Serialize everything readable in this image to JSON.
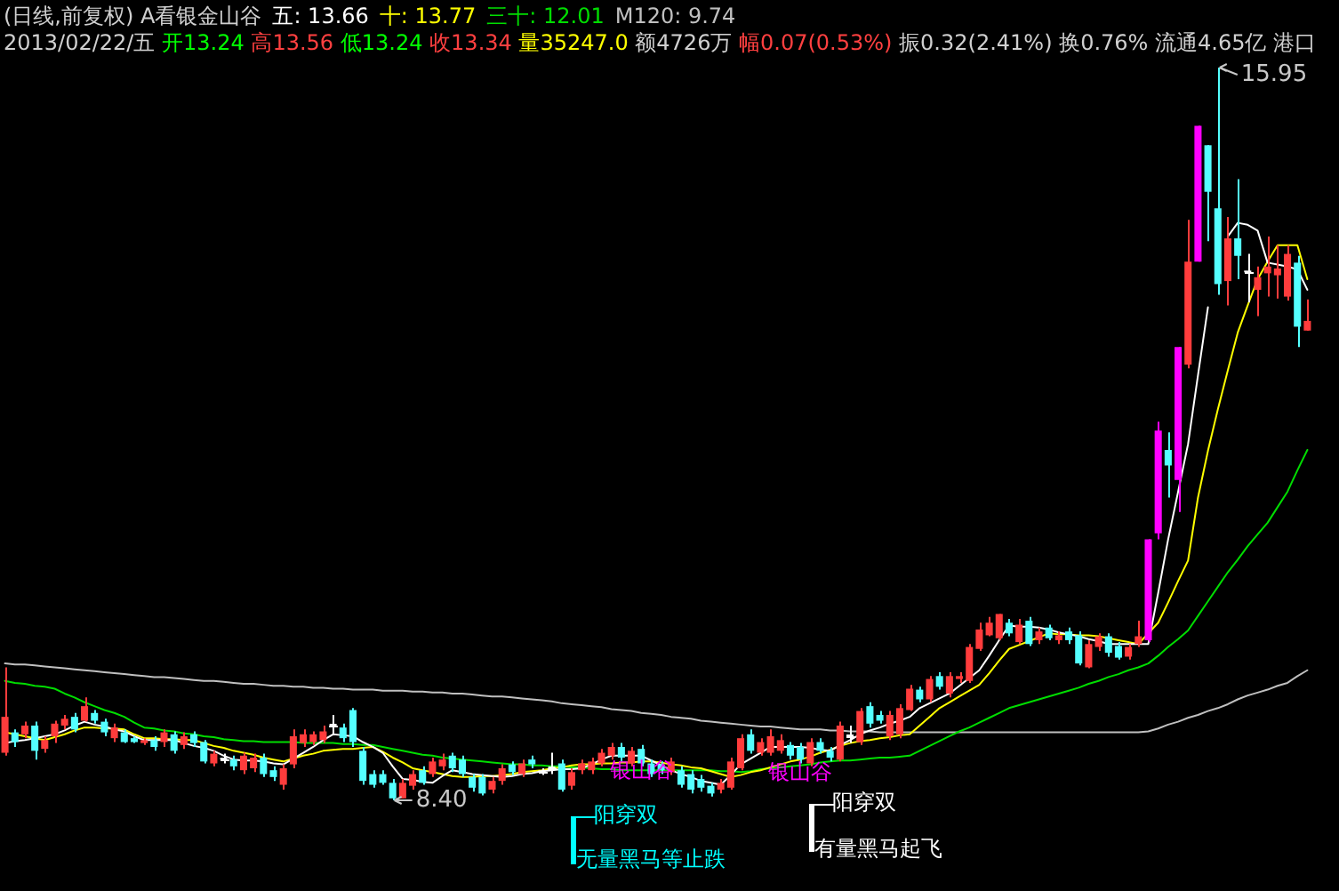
{
  "chart_data": {
    "type": "candlestick",
    "title": "(日线,前复权) A看银金山谷",
    "subtitle": "2013/02/22/五 开13.24 高13.56 低13.24 收13.34 量35247.0 额4726万 幅0.07(0.53%) 振0.32(2.41%) 换0.76% 流通4.65亿 港口",
    "tick_labels": false,
    "categories": [
      null,
      null,
      null,
      null,
      null,
      null,
      null,
      null,
      null,
      null,
      null,
      null,
      null,
      null,
      null,
      null,
      null,
      null,
      null,
      null,
      null,
      null,
      null,
      null,
      null,
      null,
      null,
      null,
      null,
      null,
      null,
      null,
      null,
      null,
      null,
      null,
      null,
      null,
      null,
      null,
      null,
      null,
      null,
      null,
      null,
      null,
      null,
      null,
      null,
      null,
      null,
      null,
      null,
      null,
      null,
      null,
      null,
      null,
      null,
      null,
      null,
      null,
      null,
      null,
      null,
      null,
      null,
      null,
      null,
      null,
      null,
      null,
      null,
      null,
      null,
      null,
      null,
      null,
      null,
      null,
      null,
      null,
      null,
      null,
      null,
      null,
      null,
      null,
      null,
      null,
      null,
      null,
      null,
      null,
      null,
      null,
      null,
      null,
      null,
      null,
      null,
      null,
      null,
      null,
      null,
      null,
      null,
      null,
      null,
      null,
      null,
      null,
      null,
      null,
      null,
      null,
      null,
      null,
      null,
      null,
      null,
      null,
      null,
      null,
      null,
      null,
      null,
      null,
      null,
      null,
      null,
      null
    ],
    "ohlc": [
      [
        8.89,
        9.77,
        8.86,
        9.26
      ],
      [
        9.1,
        9.13,
        8.95,
        9.0
      ],
      [
        9.08,
        9.21,
        9.04,
        9.17
      ],
      [
        9.17,
        9.21,
        8.82,
        8.91
      ],
      [
        8.93,
        9.06,
        8.89,
        9.02
      ],
      [
        9.06,
        9.22,
        8.99,
        9.19
      ],
      [
        9.17,
        9.28,
        9.13,
        9.24
      ],
      [
        9.26,
        9.3,
        9.1,
        9.13
      ],
      [
        9.22,
        9.46,
        9.21,
        9.37
      ],
      [
        9.3,
        9.33,
        9.19,
        9.22
      ],
      [
        9.21,
        9.24,
        9.06,
        9.1
      ],
      [
        9.04,
        9.19,
        9.0,
        9.15
      ],
      [
        9.1,
        9.13,
        8.99,
        9.0
      ],
      [
        9.04,
        9.06,
        8.99,
        9.0
      ],
      [
        8.99,
        9.04,
        8.97,
        9.02
      ],
      [
        9.02,
        9.06,
        8.91,
        8.95
      ],
      [
        9.0,
        9.13,
        8.95,
        9.1
      ],
      [
        9.08,
        9.11,
        8.88,
        8.91
      ],
      [
        8.97,
        9.1,
        8.93,
        9.06
      ],
      [
        9.08,
        9.11,
        8.95,
        8.99
      ],
      [
        9.0,
        9.02,
        8.78,
        8.8
      ],
      [
        8.78,
        8.91,
        8.75,
        8.88
      ],
      [
        8.82,
        8.88,
        8.78,
        8.82
      ],
      [
        8.82,
        8.86,
        8.71,
        8.75
      ],
      [
        8.71,
        8.89,
        8.67,
        8.86
      ],
      [
        8.73,
        8.88,
        8.69,
        8.84
      ],
      [
        8.84,
        8.88,
        8.64,
        8.67
      ],
      [
        8.71,
        8.75,
        8.6,
        8.64
      ],
      [
        8.56,
        8.77,
        8.51,
        8.73
      ],
      [
        8.77,
        9.13,
        8.73,
        9.06
      ],
      [
        8.99,
        9.13,
        8.95,
        9.08
      ],
      [
        9.0,
        9.11,
        8.97,
        9.08
      ],
      [
        9.02,
        9.17,
        8.99,
        9.11
      ],
      [
        9.17,
        9.28,
        9.08,
        9.17
      ],
      [
        9.15,
        9.19,
        9.0,
        9.04
      ],
      [
        9.33,
        9.35,
        8.95,
        9.0
      ],
      [
        8.91,
        8.95,
        8.56,
        8.6
      ],
      [
        8.67,
        8.71,
        8.53,
        8.56
      ],
      [
        8.67,
        8.71,
        8.56,
        8.58
      ],
      [
        8.58,
        8.62,
        8.4,
        8.42
      ],
      [
        8.42,
        8.62,
        8.42,
        8.58
      ],
      [
        8.55,
        8.71,
        8.51,
        8.67
      ],
      [
        8.71,
        8.75,
        8.56,
        8.58
      ],
      [
        8.67,
        8.84,
        8.64,
        8.8
      ],
      [
        8.75,
        8.88,
        8.71,
        8.82
      ],
      [
        8.86,
        8.89,
        8.69,
        8.73
      ],
      [
        8.82,
        8.86,
        8.64,
        8.67
      ],
      [
        8.64,
        8.67,
        8.49,
        8.53
      ],
      [
        8.64,
        8.67,
        8.45,
        8.47
      ],
      [
        8.51,
        8.64,
        8.47,
        8.6
      ],
      [
        8.6,
        8.77,
        8.56,
        8.73
      ],
      [
        8.77,
        8.8,
        8.66,
        8.69
      ],
      [
        8.67,
        8.82,
        8.64,
        8.78
      ],
      [
        8.82,
        8.86,
        8.73,
        8.77
      ],
      [
        8.69,
        8.73,
        8.66,
        8.69
      ],
      [
        8.73,
        8.89,
        8.67,
        8.73
      ],
      [
        8.78,
        8.82,
        8.49,
        8.51
      ],
      [
        8.55,
        8.73,
        8.51,
        8.69
      ],
      [
        8.71,
        8.82,
        8.67,
        8.78
      ],
      [
        8.71,
        8.84,
        8.67,
        8.8
      ],
      [
        8.78,
        8.93,
        8.75,
        8.89
      ],
      [
        8.86,
        8.99,
        8.82,
        8.95
      ],
      [
        8.95,
        8.99,
        8.8,
        8.84
      ],
      [
        8.78,
        8.95,
        8.75,
        8.91
      ],
      [
        8.93,
        8.97,
        8.75,
        8.78
      ],
      [
        8.78,
        8.82,
        8.64,
        8.67
      ],
      [
        8.77,
        8.8,
        8.67,
        8.71
      ],
      [
        8.69,
        8.84,
        8.66,
        8.8
      ],
      [
        8.71,
        8.75,
        8.53,
        8.56
      ],
      [
        8.67,
        8.71,
        8.47,
        8.51
      ],
      [
        8.62,
        8.66,
        8.49,
        8.53
      ],
      [
        8.55,
        8.58,
        8.44,
        8.47
      ],
      [
        8.51,
        8.62,
        8.47,
        8.58
      ],
      [
        8.53,
        8.84,
        8.51,
        8.8
      ],
      [
        8.73,
        9.08,
        8.71,
        9.04
      ],
      [
        9.08,
        9.13,
        8.88,
        8.91
      ],
      [
        8.89,
        9.04,
        8.86,
        9.0
      ],
      [
        8.89,
        9.13,
        8.86,
        9.06
      ],
      [
        8.91,
        9.08,
        8.88,
        9.02
      ],
      [
        8.97,
        9.0,
        8.82,
        8.86
      ],
      [
        8.95,
        8.99,
        8.78,
        8.82
      ],
      [
        8.78,
        9.04,
        8.75,
        9.0
      ],
      [
        9.0,
        9.04,
        8.88,
        8.91
      ],
      [
        8.91,
        8.95,
        8.8,
        8.84
      ],
      [
        8.82,
        9.21,
        8.8,
        9.17
      ],
      [
        9.06,
        9.17,
        8.99,
        9.06
      ],
      [
        9.0,
        9.35,
        8.97,
        9.32
      ],
      [
        9.37,
        9.41,
        9.15,
        9.19
      ],
      [
        9.28,
        9.32,
        9.19,
        9.22
      ],
      [
        9.06,
        9.32,
        9.02,
        9.28
      ],
      [
        9.08,
        9.39,
        9.04,
        9.35
      ],
      [
        9.33,
        9.59,
        9.32,
        9.55
      ],
      [
        9.54,
        9.57,
        9.41,
        9.44
      ],
      [
        9.44,
        9.68,
        9.41,
        9.65
      ],
      [
        9.68,
        9.72,
        9.54,
        9.57
      ],
      [
        9.5,
        9.72,
        9.46,
        9.68
      ],
      [
        9.65,
        9.72,
        9.61,
        9.68
      ],
      [
        9.63,
        10.01,
        9.61,
        9.98
      ],
      [
        9.96,
        10.23,
        9.94,
        10.16
      ],
      [
        10.1,
        10.29,
        10.09,
        10.23
      ],
      [
        10.07,
        10.32,
        10.05,
        10.32
      ],
      [
        10.23,
        10.27,
        10.09,
        10.12
      ],
      [
        10.03,
        10.27,
        10.01,
        10.21
      ],
      [
        10.25,
        10.29,
        9.99,
        10.01
      ],
      [
        10.05,
        10.18,
        10.01,
        10.14
      ],
      [
        10.18,
        10.21,
        10.05,
        10.07
      ],
      [
        10.05,
        10.14,
        10.01,
        10.1
      ],
      [
        10.14,
        10.18,
        10.01,
        10.05
      ],
      [
        10.1,
        10.14,
        9.79,
        9.81
      ],
      [
        9.77,
        10.05,
        9.76,
        10.01
      ],
      [
        9.98,
        10.12,
        9.94,
        10.09
      ],
      [
        10.09,
        10.12,
        9.88,
        9.92
      ],
      [
        9.99,
        10.03,
        9.85,
        9.87
      ],
      [
        9.88,
        10.01,
        9.85,
        9.98
      ],
      [
        10.01,
        10.25,
        9.98,
        10.09
      ],
      [
        10.05,
        11.09,
        10.03,
        11.09
      ],
      [
        11.15,
        12.3,
        11.09,
        12.21
      ],
      [
        12.01,
        12.19,
        11.52,
        11.85
      ],
      [
        11.7,
        13.07,
        11.37,
        13.07
      ],
      [
        12.89,
        14.38,
        12.85,
        13.95
      ],
      [
        13.95,
        15.35,
        13.95,
        15.35
      ],
      [
        15.15,
        15.15,
        14.16,
        14.67
      ],
      [
        14.5,
        15.95,
        13.61,
        13.72
      ],
      [
        13.75,
        14.41,
        13.5,
        14.19
      ],
      [
        14.19,
        14.8,
        13.77,
        14.01
      ],
      [
        13.84,
        14.03,
        13.53,
        13.84
      ],
      [
        13.66,
        13.9,
        13.39,
        13.79
      ],
      [
        13.83,
        14.21,
        13.59,
        13.9
      ],
      [
        13.81,
        14.12,
        13.57,
        13.88
      ],
      [
        13.59,
        14.12,
        13.55,
        14.03
      ],
      [
        13.94,
        14.01,
        13.07,
        13.28
      ],
      [
        13.24,
        13.56,
        13.24,
        13.34
      ]
    ],
    "colors": [
      "#ff3c3c",
      "#54ffff",
      "#ff3c3c",
      "#54ffff",
      "#ff3c3c",
      "#ff3c3c",
      "#ff3c3c",
      "#54ffff",
      "#ff3c3c",
      "#54ffff",
      "#54ffff",
      "#ff3c3c",
      "#54ffff",
      "#54ffff",
      "#ff3c3c",
      "#54ffff",
      "#ff3c3c",
      "#54ffff",
      "#ff3c3c",
      "#54ffff",
      "#54ffff",
      "#ff3c3c",
      "#ffffff",
      "#54ffff",
      "#ff3c3c",
      "#ff3c3c",
      "#54ffff",
      "#54ffff",
      "#ff3c3c",
      "#ff3c3c",
      "#ff3c3c",
      "#ff3c3c",
      "#ff3c3c",
      "#ffffff",
      "#54ffff",
      "#54ffff",
      "#54ffff",
      "#54ffff",
      "#54ffff",
      "#54ffff",
      "#ff3c3c",
      "#ff3c3c",
      "#54ffff",
      "#ff3c3c",
      "#ff3c3c",
      "#54ffff",
      "#54ffff",
      "#54ffff",
      "#54ffff",
      "#ff3c3c",
      "#ff3c3c",
      "#54ffff",
      "#ff3c3c",
      "#54ffff",
      "#ffffff",
      "#ffffff",
      "#54ffff",
      "#ff3c3c",
      "#ff3c3c",
      "#ff3c3c",
      "#ff3c3c",
      "#ff3c3c",
      "#54ffff",
      "#ff3c3c",
      "#54ffff",
      "#54ffff",
      "#54ffff",
      "#ff3c3c",
      "#54ffff",
      "#54ffff",
      "#54ffff",
      "#54ffff",
      "#ff3c3c",
      "#ff3c3c",
      "#ff3c3c",
      "#54ffff",
      "#ff3c3c",
      "#ff3c3c",
      "#ff3c3c",
      "#54ffff",
      "#54ffff",
      "#ff3c3c",
      "#54ffff",
      "#54ffff",
      "#ff3c3c",
      "#ffffff",
      "#ff3c3c",
      "#54ffff",
      "#54ffff",
      "#ff3c3c",
      "#ff3c3c",
      "#ff3c3c",
      "#54ffff",
      "#ff3c3c",
      "#54ffff",
      "#ff3c3c",
      "#ff3c3c",
      "#ff3c3c",
      "#ff3c3c",
      "#ff3c3c",
      "#ff3c3c",
      "#54ffff",
      "#ff3c3c",
      "#54ffff",
      "#ff3c3c",
      "#54ffff",
      "#ff3c3c",
      "#54ffff",
      "#54ffff",
      "#ff3c3c",
      "#ff3c3c",
      "#54ffff",
      "#54ffff",
      "#ff3c3c",
      "#ff3c3c",
      "#ff00ff",
      "#ff00ff",
      "#54ffff",
      "#ff00ff",
      "#ff3c3c",
      "#ff00ff",
      "#54ffff",
      "#54ffff",
      "#ff3c3c",
      "#54ffff",
      "#ffffff",
      "#ff3c3c",
      "#ff3c3c",
      "#ff3c3c",
      "#ff3c3c",
      "#54ffff",
      "#ff3c3c"
    ],
    "series": [
      {
        "name": "五: 13.66",
        "type": "line",
        "color": "#ffffff",
        "values": [
          8.99,
          9.01,
          9.02,
          9.04,
          9.06,
          9.08,
          9.12,
          9.17,
          9.21,
          9.18,
          9.16,
          9.13,
          9.11,
          9.06,
          9.02,
          9.02,
          9.02,
          9.02,
          8.99,
          8.96,
          8.94,
          8.91,
          8.86,
          8.82,
          8.81,
          8.81,
          8.8,
          8.78,
          8.77,
          8.83,
          8.89,
          8.95,
          9.02,
          9.08,
          9.07,
          9.06,
          9.0,
          8.95,
          8.89,
          8.75,
          8.62,
          8.61,
          8.59,
          8.58,
          8.65,
          8.71,
          8.69,
          8.67,
          8.66,
          8.65,
          8.64,
          8.65,
          8.67,
          8.68,
          8.7,
          8.71,
          8.72,
          8.72,
          8.73,
          8.77,
          8.82,
          8.86,
          8.86,
          8.86,
          8.86,
          8.81,
          8.76,
          8.71,
          8.67,
          8.64,
          8.6,
          8.58,
          8.56,
          8.66,
          8.77,
          8.83,
          8.89,
          8.95,
          8.95,
          8.95,
          8.95,
          8.94,
          8.92,
          8.91,
          8.97,
          9.02,
          9.08,
          9.12,
          9.15,
          9.19,
          9.22,
          9.26,
          9.35,
          9.4,
          9.45,
          9.5,
          9.58,
          9.66,
          9.74,
          9.89,
          10.05,
          10.2,
          10.19,
          10.19,
          10.18,
          10.16,
          10.13,
          10.11,
          10.09,
          10.06,
          10.04,
          10.01,
          10.01,
          10.01,
          10.01,
          10.01,
          10.54,
          11.09,
          11.58,
          12.07,
          12.78,
          13.48,
          null,
          14.21,
          14.35,
          14.33,
          14.27,
          13.94,
          13.92,
          13.9,
          13.87,
          13.66
        ]
      },
      {
        "name": "十: 13.77",
        "type": "line",
        "color": "#ffff00",
        "values": [
          9.1,
          9.08,
          9.06,
          9.04,
          9.02,
          9.05,
          9.08,
          9.12,
          9.15,
          9.15,
          9.14,
          9.14,
          9.13,
          9.08,
          9.04,
          9.04,
          9.03,
          9.03,
          9.02,
          9.02,
          8.99,
          8.96,
          8.94,
          8.91,
          8.89,
          8.87,
          8.84,
          8.82,
          8.8,
          8.83,
          8.86,
          8.88,
          8.91,
          8.92,
          8.93,
          8.93,
          8.94,
          8.95,
          8.9,
          8.84,
          8.79,
          8.73,
          8.71,
          8.69,
          8.67,
          8.65,
          8.64,
          8.64,
          8.65,
          8.65,
          8.66,
          8.67,
          8.69,
          8.7,
          8.71,
          8.73,
          8.74,
          8.76,
          8.77,
          8.77,
          8.78,
          8.78,
          8.79,
          8.79,
          8.8,
          8.8,
          8.79,
          8.77,
          8.76,
          8.74,
          8.73,
          8.7,
          8.67,
          8.64,
          8.66,
          8.69,
          8.71,
          8.74,
          8.77,
          8.8,
          8.82,
          8.85,
          8.89,
          8.92,
          8.96,
          8.99,
          9.01,
          9.02,
          9.04,
          9.05,
          9.07,
          9.08,
          9.17,
          9.26,
          9.35,
          9.41,
          9.47,
          9.53,
          9.59,
          9.71,
          9.84,
          9.96,
          10.0,
          10.04,
          10.08,
          10.12,
          10.11,
          10.11,
          10.1,
          10.1,
          10.09,
          10.07,
          10.05,
          10.03,
          10.01,
          10.12,
          10.23,
          10.44,
          10.66,
          10.87,
          11.52,
          12.0,
          12.43,
          12.83,
          13.22,
          13.5,
          13.77,
          13.95,
          14.12,
          14.12,
          14.12,
          13.77
        ]
      },
      {
        "name": "三十: 12.01",
        "type": "line",
        "color": "#00dd00",
        "values": [
          9.63,
          9.61,
          9.6,
          9.58,
          9.57,
          9.55,
          9.5,
          9.46,
          9.41,
          9.37,
          9.33,
          9.3,
          9.26,
          9.2,
          9.15,
          9.14,
          9.12,
          9.11,
          9.09,
          9.08,
          9.06,
          9.05,
          9.03,
          9.02,
          9.01,
          9.01,
          9.0,
          9.0,
          9.0,
          9.0,
          8.99,
          8.99,
          8.99,
          8.99,
          8.98,
          8.98,
          8.97,
          8.97,
          8.95,
          8.93,
          8.91,
          8.89,
          8.87,
          8.86,
          8.84,
          8.83,
          8.82,
          8.81,
          8.8,
          8.79,
          8.78,
          8.77,
          8.77,
          8.76,
          8.76,
          8.75,
          8.75,
          8.74,
          8.74,
          8.73,
          8.72,
          8.72,
          8.71,
          8.71,
          8.71,
          8.71,
          8.71,
          8.71,
          8.71,
          8.71,
          8.71,
          8.71,
          8.7,
          8.7,
          8.69,
          8.7,
          8.72,
          8.73,
          8.74,
          8.75,
          8.76,
          8.77,
          8.79,
          8.8,
          8.81,
          8.81,
          8.82,
          8.83,
          8.84,
          8.84,
          8.85,
          8.86,
          8.91,
          8.96,
          9.01,
          9.06,
          9.11,
          9.15,
          9.2,
          9.25,
          9.3,
          9.35,
          9.38,
          9.41,
          9.44,
          9.47,
          9.5,
          9.53,
          9.56,
          9.6,
          9.63,
          9.67,
          9.7,
          9.74,
          9.77,
          9.81,
          9.89,
          9.98,
          10.06,
          10.15,
          10.3,
          10.45,
          10.6,
          10.75,
          10.88,
          11.02,
          11.14,
          11.26,
          11.42,
          11.58,
          11.8,
          12.01
        ]
      },
      {
        "name": "M120: 9.74",
        "type": "line",
        "color": "#c0c0c0",
        "values": [
          9.81,
          9.8,
          9.8,
          9.79,
          9.78,
          9.77,
          9.76,
          9.75,
          9.74,
          9.73,
          9.72,
          9.71,
          9.7,
          9.69,
          9.68,
          9.67,
          9.67,
          9.66,
          9.65,
          9.64,
          9.63,
          9.63,
          9.62,
          9.61,
          9.6,
          9.6,
          9.59,
          9.58,
          9.58,
          9.57,
          9.57,
          9.56,
          9.56,
          9.55,
          9.55,
          9.54,
          9.54,
          9.54,
          9.53,
          9.53,
          9.53,
          9.52,
          9.52,
          9.51,
          9.51,
          9.5,
          9.5,
          9.49,
          9.48,
          9.47,
          9.47,
          9.46,
          9.45,
          9.44,
          9.43,
          9.42,
          9.4,
          9.39,
          9.38,
          9.37,
          9.36,
          9.34,
          9.33,
          9.32,
          9.3,
          9.29,
          9.28,
          9.26,
          9.25,
          9.24,
          9.22,
          9.21,
          9.2,
          9.19,
          9.18,
          9.17,
          9.16,
          9.16,
          9.15,
          9.14,
          9.13,
          9.13,
          9.13,
          9.12,
          9.12,
          9.11,
          9.11,
          9.11,
          9.1,
          9.1,
          9.1,
          9.1,
          9.1,
          9.1,
          9.1,
          9.1,
          9.1,
          9.1,
          9.1,
          9.1,
          9.1,
          9.1,
          9.1,
          9.1,
          9.1,
          9.1,
          9.1,
          9.1,
          9.1,
          9.1,
          9.1,
          9.1,
          9.1,
          9.1,
          9.1,
          9.11,
          9.14,
          9.18,
          9.21,
          9.25,
          9.28,
          9.32,
          9.35,
          9.39,
          9.44,
          9.48,
          9.51,
          9.54,
          9.58,
          9.61,
          9.68,
          9.74
        ]
      }
    ],
    "annotations": [
      "15.95",
      "8.40",
      "银山谷",
      "银山谷",
      "阳穿双",
      "无量黑马等止跌",
      "阳穿双",
      "有量黑马起飞"
    ]
  }
}
